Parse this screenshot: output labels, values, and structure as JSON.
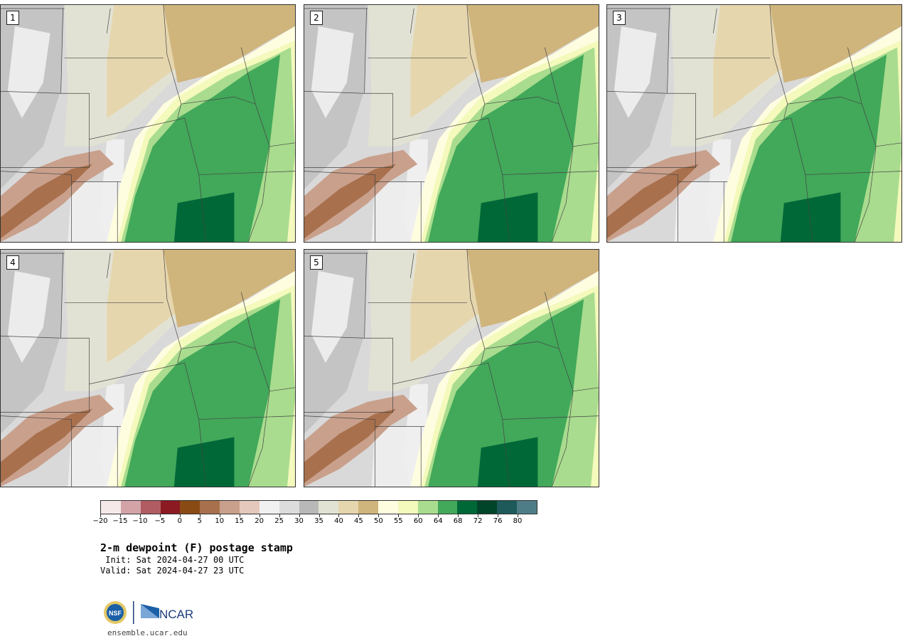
{
  "panels": [
    {
      "label": "1"
    },
    {
      "label": "2"
    },
    {
      "label": "3"
    },
    {
      "label": "4"
    },
    {
      "label": "5"
    }
  ],
  "colorbar": {
    "colors": [
      "#f5e9ea",
      "#d3a3a8",
      "#b05c62",
      "#8b1a22",
      "#8a4a14",
      "#a8704d",
      "#c9a08c",
      "#e4c8bb",
      "#f1f1f1",
      "#dcdcdc",
      "#b8b8b8",
      "#e2e2d4",
      "#e6d6ae",
      "#cfb47c",
      "#fffde0",
      "#f4f9bc",
      "#a9dc8e",
      "#42a85a",
      "#006837",
      "#00442a",
      "#1e5a5a",
      "#4f7d87"
    ],
    "tick_labels": [
      "−20",
      "−15",
      "−10",
      "−5",
      "0",
      "5",
      "10",
      "15",
      "20",
      "25",
      "30",
      "35",
      "40",
      "45",
      "50",
      "55",
      "60",
      "64",
      "68",
      "72",
      "76",
      "80"
    ]
  },
  "title": "2-m dewpoint (F) postage stamp",
  "init": " Init: Sat 2024-04-27 00 UTC",
  "valid": "Valid: Sat 2024-04-27 23 UTC",
  "website": "ensemble.ucar.edu",
  "logo": {
    "nsf_text": "NSF",
    "ncar_text": "NCAR",
    "nsf_color": "#1b5fa6",
    "ncar_color": "#1b3d7a"
  }
}
